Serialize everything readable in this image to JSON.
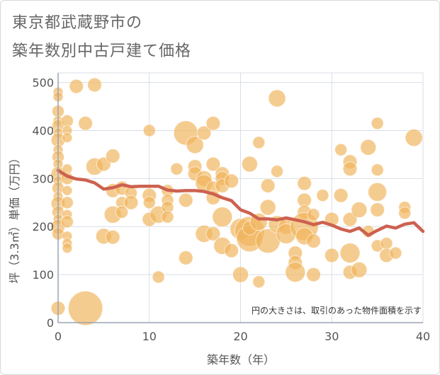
{
  "title_lines": [
    "東京都武蔵野市の",
    "築年数別中古戸建て価格"
  ],
  "chart_data": {
    "type": "scatter",
    "title": "東京都武蔵野市の築年数別中古戸建て価格",
    "xlabel": "築年数（年）",
    "ylabel": "坪（3.3㎡）単価（万円）",
    "xlim": [
      0,
      40
    ],
    "ylim": [
      0,
      520
    ],
    "xticks": [
      0,
      10,
      20,
      30,
      40
    ],
    "yticks": [
      0,
      100,
      200,
      300,
      400,
      500
    ],
    "grid": true,
    "note": "円の大きさは、取引のあった物件面積を示す",
    "colors": {
      "bubble": "#f0b45c",
      "trend": "#cd6150",
      "grid": "#d8dde6",
      "axis": "#9aa4b4"
    },
    "bubbles": [
      {
        "x": 0,
        "y": 480,
        "s": 1
      },
      {
        "x": 0,
        "y": 470,
        "s": 1
      },
      {
        "x": 0,
        "y": 440,
        "s": 1.5
      },
      {
        "x": 0,
        "y": 420,
        "s": 1
      },
      {
        "x": 0,
        "y": 410,
        "s": 1.5
      },
      {
        "x": 0,
        "y": 395,
        "s": 1
      },
      {
        "x": 0,
        "y": 380,
        "s": 2
      },
      {
        "x": 0,
        "y": 360,
        "s": 1
      },
      {
        "x": 0,
        "y": 345,
        "s": 1.5
      },
      {
        "x": 0,
        "y": 330,
        "s": 1
      },
      {
        "x": 0,
        "y": 310,
        "s": 2
      },
      {
        "x": 0,
        "y": 295,
        "s": 1
      },
      {
        "x": 0,
        "y": 280,
        "s": 1.5
      },
      {
        "x": 0,
        "y": 262,
        "s": 1
      },
      {
        "x": 0,
        "y": 248,
        "s": 2
      },
      {
        "x": 0,
        "y": 230,
        "s": 1.5
      },
      {
        "x": 0,
        "y": 215,
        "s": 1
      },
      {
        "x": 0,
        "y": 200,
        "s": 2
      },
      {
        "x": 0,
        "y": 185,
        "s": 1.5
      },
      {
        "x": 0,
        "y": 30,
        "s": 2
      },
      {
        "x": 1,
        "y": 420,
        "s": 1.5
      },
      {
        "x": 1,
        "y": 400,
        "s": 1
      },
      {
        "x": 1,
        "y": 385,
        "s": 1
      },
      {
        "x": 1,
        "y": 320,
        "s": 1
      },
      {
        "x": 1,
        "y": 300,
        "s": 1.5
      },
      {
        "x": 1,
        "y": 275,
        "s": 1
      },
      {
        "x": 1,
        "y": 250,
        "s": 1.5
      },
      {
        "x": 1,
        "y": 225,
        "s": 1
      },
      {
        "x": 1,
        "y": 210,
        "s": 1.5
      },
      {
        "x": 1,
        "y": 180,
        "s": 1
      },
      {
        "x": 1,
        "y": 165,
        "s": 1
      },
      {
        "x": 1,
        "y": 155,
        "s": 1
      },
      {
        "x": 2,
        "y": 492,
        "s": 2
      },
      {
        "x": 3,
        "y": 415,
        "s": 2
      },
      {
        "x": 4,
        "y": 495,
        "s": 2
      },
      {
        "x": 4,
        "y": 325,
        "s": 3
      },
      {
        "x": 5,
        "y": 330,
        "s": 2
      },
      {
        "x": 5,
        "y": 180,
        "s": 2.5
      },
      {
        "x": 6,
        "y": 347,
        "s": 2
      },
      {
        "x": 6,
        "y": 275,
        "s": 2
      },
      {
        "x": 6,
        "y": 225,
        "s": 3
      },
      {
        "x": 6,
        "y": 178,
        "s": 2
      },
      {
        "x": 7,
        "y": 280,
        "s": 2
      },
      {
        "x": 7,
        "y": 250,
        "s": 1.5
      },
      {
        "x": 7,
        "y": 230,
        "s": 1.5
      },
      {
        "x": 8,
        "y": 270,
        "s": 1.5
      },
      {
        "x": 8,
        "y": 250,
        "s": 2
      },
      {
        "x": 3,
        "y": 30,
        "s": 12
      },
      {
        "x": 10,
        "y": 400,
        "s": 1.5
      },
      {
        "x": 10,
        "y": 265,
        "s": 2
      },
      {
        "x": 10,
        "y": 250,
        "s": 1.5
      },
      {
        "x": 10,
        "y": 215,
        "s": 2
      },
      {
        "x": 11,
        "y": 225,
        "s": 3
      },
      {
        "x": 11,
        "y": 95,
        "s": 1.5
      },
      {
        "x": 12,
        "y": 275,
        "s": 1.5
      },
      {
        "x": 12,
        "y": 255,
        "s": 1.5
      },
      {
        "x": 12,
        "y": 240,
        "s": 1.5
      },
      {
        "x": 12,
        "y": 220,
        "s": 1.5
      },
      {
        "x": 13,
        "y": 320,
        "s": 1.5
      },
      {
        "x": 14,
        "y": 395,
        "s": 6
      },
      {
        "x": 14,
        "y": 255,
        "s": 2
      },
      {
        "x": 14,
        "y": 135,
        "s": 2
      },
      {
        "x": 15,
        "y": 370,
        "s": 3
      },
      {
        "x": 15,
        "y": 325,
        "s": 2
      },
      {
        "x": 15,
        "y": 310,
        "s": 2
      },
      {
        "x": 16,
        "y": 395,
        "s": 2
      },
      {
        "x": 16,
        "y": 300,
        "s": 2.5
      },
      {
        "x": 16,
        "y": 290,
        "s": 3
      },
      {
        "x": 16,
        "y": 185,
        "s": 3
      },
      {
        "x": 17,
        "y": 415,
        "s": 2
      },
      {
        "x": 17,
        "y": 330,
        "s": 2
      },
      {
        "x": 17,
        "y": 280,
        "s": 2
      },
      {
        "x": 17,
        "y": 260,
        "s": 2
      },
      {
        "x": 17,
        "y": 185,
        "s": 2
      },
      {
        "x": 18,
        "y": 310,
        "s": 2
      },
      {
        "x": 18,
        "y": 300,
        "s": 2
      },
      {
        "x": 18,
        "y": 285,
        "s": 2
      },
      {
        "x": 18,
        "y": 220,
        "s": 4
      },
      {
        "x": 18,
        "y": 160,
        "s": 3
      },
      {
        "x": 19,
        "y": 295,
        "s": 2
      },
      {
        "x": 19,
        "y": 150,
        "s": 2
      },
      {
        "x": 20,
        "y": 195,
        "s": 4.5
      },
      {
        "x": 20,
        "y": 100,
        "s": 2.5
      },
      {
        "x": 21,
        "y": 330,
        "s": 2.5
      },
      {
        "x": 21,
        "y": 190,
        "s": 9
      },
      {
        "x": 21,
        "y": 175,
        "s": 7
      },
      {
        "x": 21,
        "y": 197,
        "s": 2
      },
      {
        "x": 22,
        "y": 375,
        "s": 1.5
      },
      {
        "x": 22,
        "y": 210,
        "s": 3
      },
      {
        "x": 22,
        "y": 85,
        "s": 1.5
      },
      {
        "x": 23,
        "y": 285,
        "s": 2
      },
      {
        "x": 23,
        "y": 240,
        "s": 2.5
      },
      {
        "x": 23,
        "y": 170,
        "s": 6
      },
      {
        "x": 24,
        "y": 467,
        "s": 3
      },
      {
        "x": 24,
        "y": 315,
        "s": 1.5
      },
      {
        "x": 24,
        "y": 205,
        "s": 3
      },
      {
        "x": 25,
        "y": 200,
        "s": 2.5
      },
      {
        "x": 25,
        "y": 185,
        "s": 4
      },
      {
        "x": 26,
        "y": 145,
        "s": 2
      },
      {
        "x": 26,
        "y": 125,
        "s": 2
      },
      {
        "x": 26,
        "y": 105,
        "s": 4
      },
      {
        "x": 27,
        "y": 290,
        "s": 2
      },
      {
        "x": 27,
        "y": 255,
        "s": 2
      },
      {
        "x": 27,
        "y": 230,
        "s": 2
      },
      {
        "x": 27,
        "y": 200,
        "s": 8
      },
      {
        "x": 27,
        "y": 180,
        "s": 3
      },
      {
        "x": 28,
        "y": 225,
        "s": 1.5
      },
      {
        "x": 28,
        "y": 170,
        "s": 2
      },
      {
        "x": 28,
        "y": 100,
        "s": 2
      },
      {
        "x": 29,
        "y": 265,
        "s": 1.5
      },
      {
        "x": 30,
        "y": 215,
        "s": 2
      },
      {
        "x": 30,
        "y": 140,
        "s": 2
      },
      {
        "x": 31,
        "y": 360,
        "s": 1.5
      },
      {
        "x": 31,
        "y": 265,
        "s": 2
      },
      {
        "x": 32,
        "y": 335,
        "s": 2
      },
      {
        "x": 32,
        "y": 320,
        "s": 2
      },
      {
        "x": 32,
        "y": 215,
        "s": 2
      },
      {
        "x": 32,
        "y": 145,
        "s": 4
      },
      {
        "x": 32,
        "y": 105,
        "s": 2
      },
      {
        "x": 33,
        "y": 235,
        "s": 2.5
      },
      {
        "x": 33,
        "y": 110,
        "s": 2.5
      },
      {
        "x": 34,
        "y": 365,
        "s": 2.5
      },
      {
        "x": 34,
        "y": 190,
        "s": 1.5
      },
      {
        "x": 35,
        "y": 415,
        "s": 1.5
      },
      {
        "x": 35,
        "y": 318,
        "s": 1.5
      },
      {
        "x": 35,
        "y": 272,
        "s": 3.5
      },
      {
        "x": 35,
        "y": 235,
        "s": 2
      },
      {
        "x": 35,
        "y": 160,
        "s": 1.5
      },
      {
        "x": 36,
        "y": 165,
        "s": 1.5
      },
      {
        "x": 36,
        "y": 140,
        "s": 2
      },
      {
        "x": 37,
        "y": 145,
        "s": 1.5
      },
      {
        "x": 38,
        "y": 240,
        "s": 1.5
      },
      {
        "x": 38,
        "y": 228,
        "s": 1.5
      },
      {
        "x": 39,
        "y": 385,
        "s": 3
      }
    ],
    "trend_line": {
      "x": [
        0,
        1,
        2,
        3,
        4,
        5,
        6,
        7,
        8,
        9,
        10,
        11,
        12,
        13,
        14,
        15,
        16,
        17,
        18,
        19,
        20,
        21,
        22,
        23,
        24,
        25,
        26,
        27,
        28,
        29,
        30,
        31,
        32,
        33,
        34,
        35,
        36,
        37,
        38,
        39,
        40
      ],
      "y": [
        317,
        305,
        299,
        297,
        291,
        278,
        281,
        287,
        283,
        284,
        284,
        284,
        276,
        274,
        275,
        275,
        273,
        268,
        260,
        254,
        235,
        228,
        216,
        216,
        214,
        218,
        214,
        210,
        204,
        209,
        203,
        195,
        190,
        197,
        182,
        192,
        201,
        197,
        205,
        208,
        190
      ]
    }
  }
}
